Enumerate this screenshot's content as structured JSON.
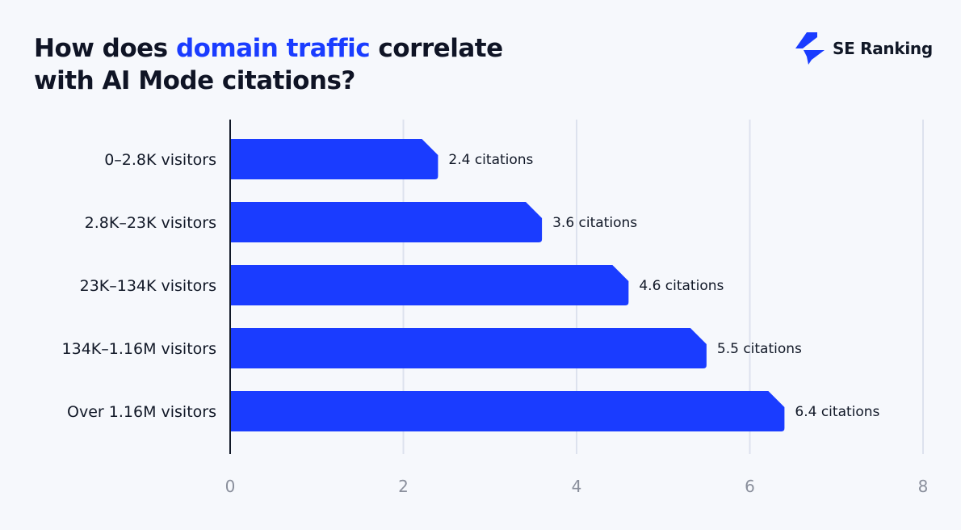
{
  "title": {
    "before": "How does ",
    "highlight": "domain traffic",
    "after": " correlate",
    "line2": "with AI Mode citations?"
  },
  "brand": {
    "name": "SE Ranking",
    "logo_icon": "lightning-bolt-icon",
    "color": "#1a3cff"
  },
  "chart_data": {
    "type": "bar",
    "orientation": "horizontal",
    "categories": [
      "0–2.8K visitors",
      "2.8K–23K visitors",
      "23K–134K visitors",
      "134K–1.16M visitors",
      "Over 1.16M visitors"
    ],
    "values": [
      2.4,
      3.6,
      4.6,
      5.5,
      6.4
    ],
    "data_labels": [
      "2.4 citations",
      "3.6 citations",
      "4.6 citations",
      "5.5 citations",
      "6.4 citations"
    ],
    "xlim": [
      0,
      8
    ],
    "xticks": [
      "0",
      "2",
      "4",
      "6",
      "8"
    ],
    "grid": true,
    "bar_color": "#1a3cff",
    "xlabel": "",
    "ylabel": ""
  }
}
